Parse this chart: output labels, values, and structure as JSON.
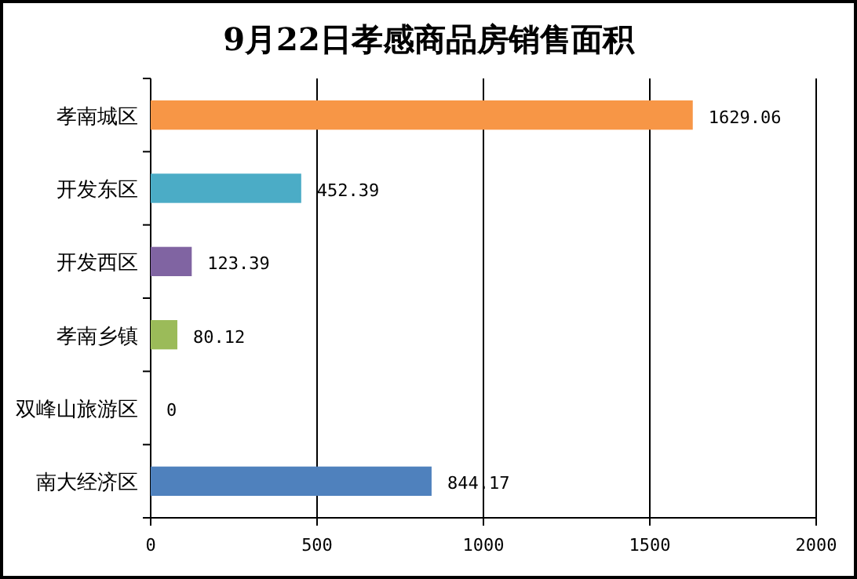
{
  "chart_data": {
    "type": "bar",
    "orientation": "horizontal",
    "title": "9月22日孝感商品房销售面积",
    "categories": [
      "孝南城区",
      "开发东区",
      "开发西区",
      "孝南乡镇",
      "双峰山旅游区",
      "南大经济区"
    ],
    "values": [
      1629.06,
      452.39,
      123.39,
      80.12,
      0,
      844.17
    ],
    "colors": [
      "#f79646",
      "#4bacc6",
      "#8064a2",
      "#9bbb59",
      "#4f81bd",
      "#4f81bd"
    ],
    "xlim": [
      0,
      2000
    ],
    "xticks": [
      0,
      500,
      1000,
      1500,
      2000
    ],
    "grid": "x",
    "data_labels": true
  }
}
